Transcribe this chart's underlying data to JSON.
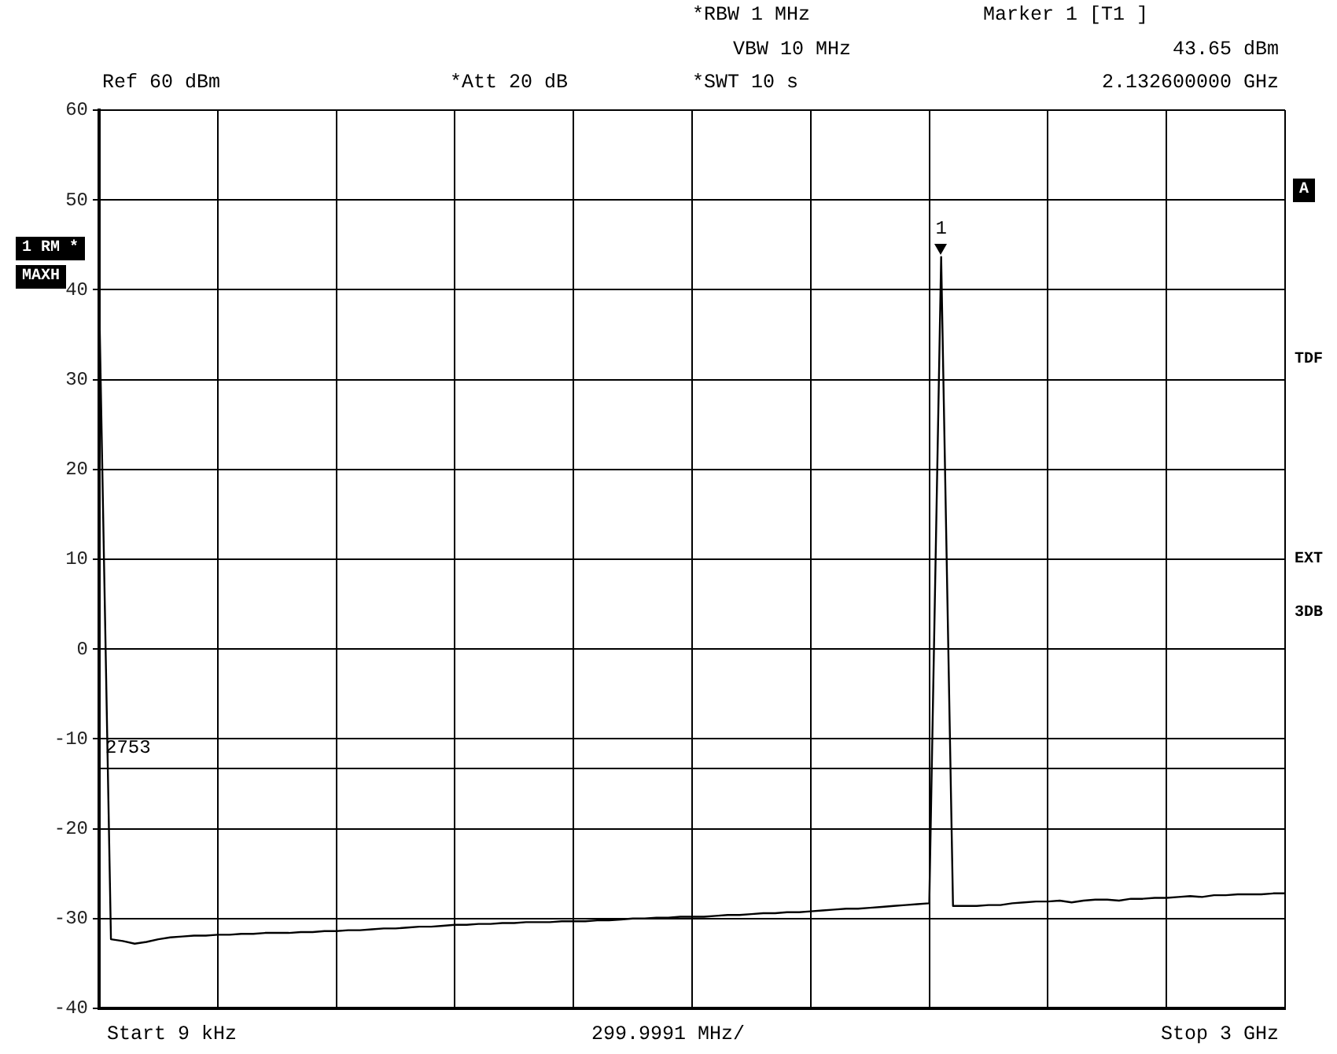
{
  "chart_data": {
    "type": "line",
    "categories": [
      null,
      null,
      null,
      null,
      null,
      null,
      null,
      null,
      null,
      null,
      null,
      null,
      null,
      null,
      null,
      null,
      null,
      null,
      null,
      null,
      null,
      null,
      null,
      null,
      null,
      null,
      null,
      null,
      null,
      null,
      null,
      null,
      null,
      null,
      null,
      null,
      null,
      null,
      null,
      null,
      null,
      null,
      null,
      null,
      null,
      null,
      null,
      null,
      null,
      null,
      null,
      null,
      null,
      null,
      null,
      null,
      null,
      null,
      null,
      null,
      null,
      null,
      null,
      null,
      null,
      null,
      null,
      null,
      null,
      null,
      null,
      null,
      null,
      null,
      null,
      null,
      null,
      null,
      null,
      null,
      null,
      null,
      null,
      null,
      null,
      null,
      null,
      null,
      null,
      null,
      null,
      null,
      null,
      null,
      null,
      null,
      null,
      null,
      null,
      null,
      null
    ],
    "series": [
      {
        "color": "#000000",
        "values": [
          39.5,
          -32.3,
          -32.5,
          -32.8,
          -32.6,
          -32.3,
          -32.1,
          -32.0,
          -31.9,
          -31.9,
          -31.8,
          -31.8,
          -31.7,
          -31.7,
          -31.6,
          -31.6,
          -31.6,
          -31.5,
          -31.5,
          -31.4,
          -31.4,
          -31.3,
          -31.3,
          -31.2,
          -31.1,
          -31.1,
          -31.0,
          -30.9,
          -30.9,
          -30.8,
          -30.7,
          -30.7,
          -30.6,
          -30.6,
          -30.5,
          -30.5,
          -30.4,
          -30.4,
          -30.4,
          -30.3,
          -30.3,
          -30.3,
          -30.2,
          -30.2,
          -30.1,
          -30.0,
          -30.0,
          -29.9,
          -29.9,
          -29.8,
          -29.8,
          -29.8,
          -29.7,
          -29.6,
          -29.6,
          -29.5,
          -29.4,
          -29.4,
          -29.3,
          -29.3,
          -29.2,
          -29.1,
          -29.0,
          -28.9,
          -28.9,
          -28.8,
          -28.7,
          -28.6,
          -28.5,
          -28.4,
          -28.3,
          43.65,
          -28.6,
          -28.6,
          -28.6,
          -28.5,
          -28.5,
          -28.3,
          -28.2,
          -28.1,
          -28.1,
          -28.0,
          -28.2,
          -28.0,
          -27.9,
          -27.9,
          -28.0,
          -27.8,
          -27.8,
          -27.7,
          -27.7,
          -27.6,
          -27.5,
          -27.6,
          -27.4,
          -27.4,
          -27.3,
          -27.3,
          -27.3,
          -27.2,
          -27.2
        ]
      }
    ],
    "ylim": [
      -40,
      60
    ],
    "yticks": [
      -40,
      -30,
      -20,
      -10,
      0,
      10,
      20,
      30,
      40,
      50,
      60
    ],
    "grid": true,
    "marker": "none",
    "line_style": "solid",
    "legend": false,
    "ref_lines": [
      {
        "axis": "y",
        "value": -13.3
      }
    ],
    "annotations": [
      "1",
      "*RBW 1 MHz",
      "VBW 10 MHz",
      "*SWT 10 s",
      "Marker 1 [T1 ]",
      "43.65 dBm",
      "2.132600000 GHz",
      "Ref 60 dBm",
      "*Att 20 dB",
      "Start 9 kHz",
      "299.9991 MHz/",
      "Stop 3 GHz",
      "2753",
      "1 RM *",
      "MAXH",
      "A",
      "TDF",
      "EXT",
      "3DB"
    ]
  }
}
